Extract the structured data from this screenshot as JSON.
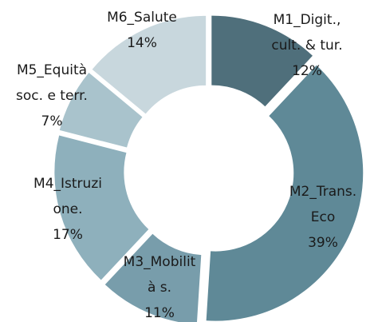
{
  "chart_data": {
    "type": "donut",
    "categories": [
      [
        "M1_Digit.,",
        "cult. & tur."
      ],
      [
        "M2_Trans.",
        "Eco"
      ],
      [
        "M3_Mobilit",
        "à s."
      ],
      [
        "M4_Istruzi",
        "one."
      ],
      [
        "M5_Equità",
        "soc. e terr."
      ],
      [
        "M6_Salute"
      ]
    ],
    "values": [
      12,
      39,
      11,
      17,
      7,
      14
    ],
    "value_labels": [
      "12%",
      "39%",
      "11%",
      "17%",
      "7%",
      "14%"
    ],
    "colors": [
      "#4f6f7b",
      "#5f8997",
      "#789dab",
      "#8eb0bc",
      "#a9c3cc",
      "#c8d7dd"
    ]
  }
}
